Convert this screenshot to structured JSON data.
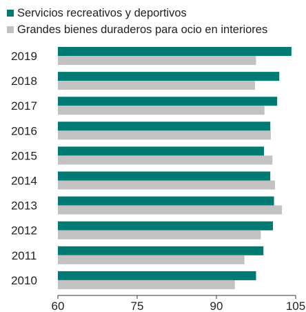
{
  "chart_data": {
    "type": "bar",
    "orientation": "horizontal",
    "categories": [
      "2019",
      "2018",
      "2017",
      "2016",
      "2015",
      "2014",
      "2013",
      "2012",
      "2011",
      "2010"
    ],
    "series": [
      {
        "name": "Servicios recreativos y deportivos",
        "color": "#007a73",
        "values": [
          104.2,
          101.9,
          101.5,
          100.2,
          99.0,
          100.2,
          100.9,
          100.7,
          98.9,
          97.5
        ]
      },
      {
        "name": "Grandes bienes duraderos para ocio en interiores",
        "color": "#c2c2c2",
        "values": [
          97.5,
          97.3,
          99.1,
          100.3,
          100.6,
          101.1,
          102.4,
          98.4,
          95.3,
          93.5
        ]
      }
    ],
    "xlim": [
      60,
      105
    ],
    "xticks": [
      "60",
      "75",
      "90",
      "105"
    ],
    "legend_position": "top-left",
    "grid": false
  }
}
